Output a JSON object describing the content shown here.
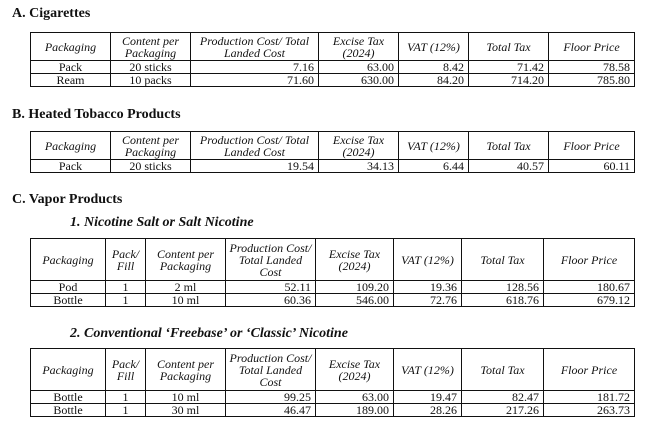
{
  "sections": {
    "a": {
      "heading": "A. Cigarettes",
      "headers": [
        "Packaging",
        "Content per Packaging",
        "Production Cost/ Total Landed Cost",
        "Excise Tax (2024)",
        "VAT (12%)",
        "Total Tax",
        "Floor Price"
      ],
      "rows": [
        [
          "Pack",
          "20 sticks",
          "7.16",
          "63.00",
          "8.42",
          "71.42",
          "78.58"
        ],
        [
          "Ream",
          "10 packs",
          "71.60",
          "630.00",
          "84.20",
          "714.20",
          "785.80"
        ]
      ]
    },
    "b": {
      "heading": "B. Heated Tobacco Products",
      "headers": [
        "Packaging",
        "Content per Packaging",
        "Production Cost/ Total Landed Cost",
        "Excise Tax (2024)",
        "VAT (12%)",
        "Total Tax",
        "Floor Price"
      ],
      "rows": [
        [
          "Pack",
          "20 sticks",
          "19.54",
          "34.13",
          "6.44",
          "40.57",
          "60.11"
        ]
      ]
    },
    "c": {
      "heading": "C. Vapor Products",
      "sub1": {
        "heading": "1. Nicotine Salt or Salt Nicotine",
        "headers": [
          "Packaging",
          "Pack/ Fill",
          "Content per Packaging",
          "Production Cost/ Total Landed Cost",
          "Excise Tax (2024)",
          "VAT (12%)",
          "Total Tax",
          "Floor Price"
        ],
        "rows": [
          [
            "Pod",
            "1",
            "2 ml",
            "52.11",
            "109.20",
            "19.36",
            "128.56",
            "180.67"
          ],
          [
            "Bottle",
            "1",
            "10 ml",
            "60.36",
            "546.00",
            "72.76",
            "618.76",
            "679.12"
          ]
        ]
      },
      "sub2": {
        "heading": "2. Conventional ‘Freebase’ or ‘Classic’ Nicotine",
        "headers": [
          "Packaging",
          "Pack/ Fill",
          "Content per Packaging",
          "Production Cost/ Total Landed Cost",
          "Excise Tax (2024)",
          "VAT (12%)",
          "Total Tax",
          "Floor Price"
        ],
        "rows": [
          [
            "Bottle",
            "1",
            "10 ml",
            "99.25",
            "63.00",
            "19.47",
            "82.47",
            "181.72"
          ],
          [
            "Bottle",
            "1",
            "30 ml",
            "46.47",
            "189.00",
            "28.26",
            "217.26",
            "263.73"
          ]
        ]
      }
    }
  }
}
